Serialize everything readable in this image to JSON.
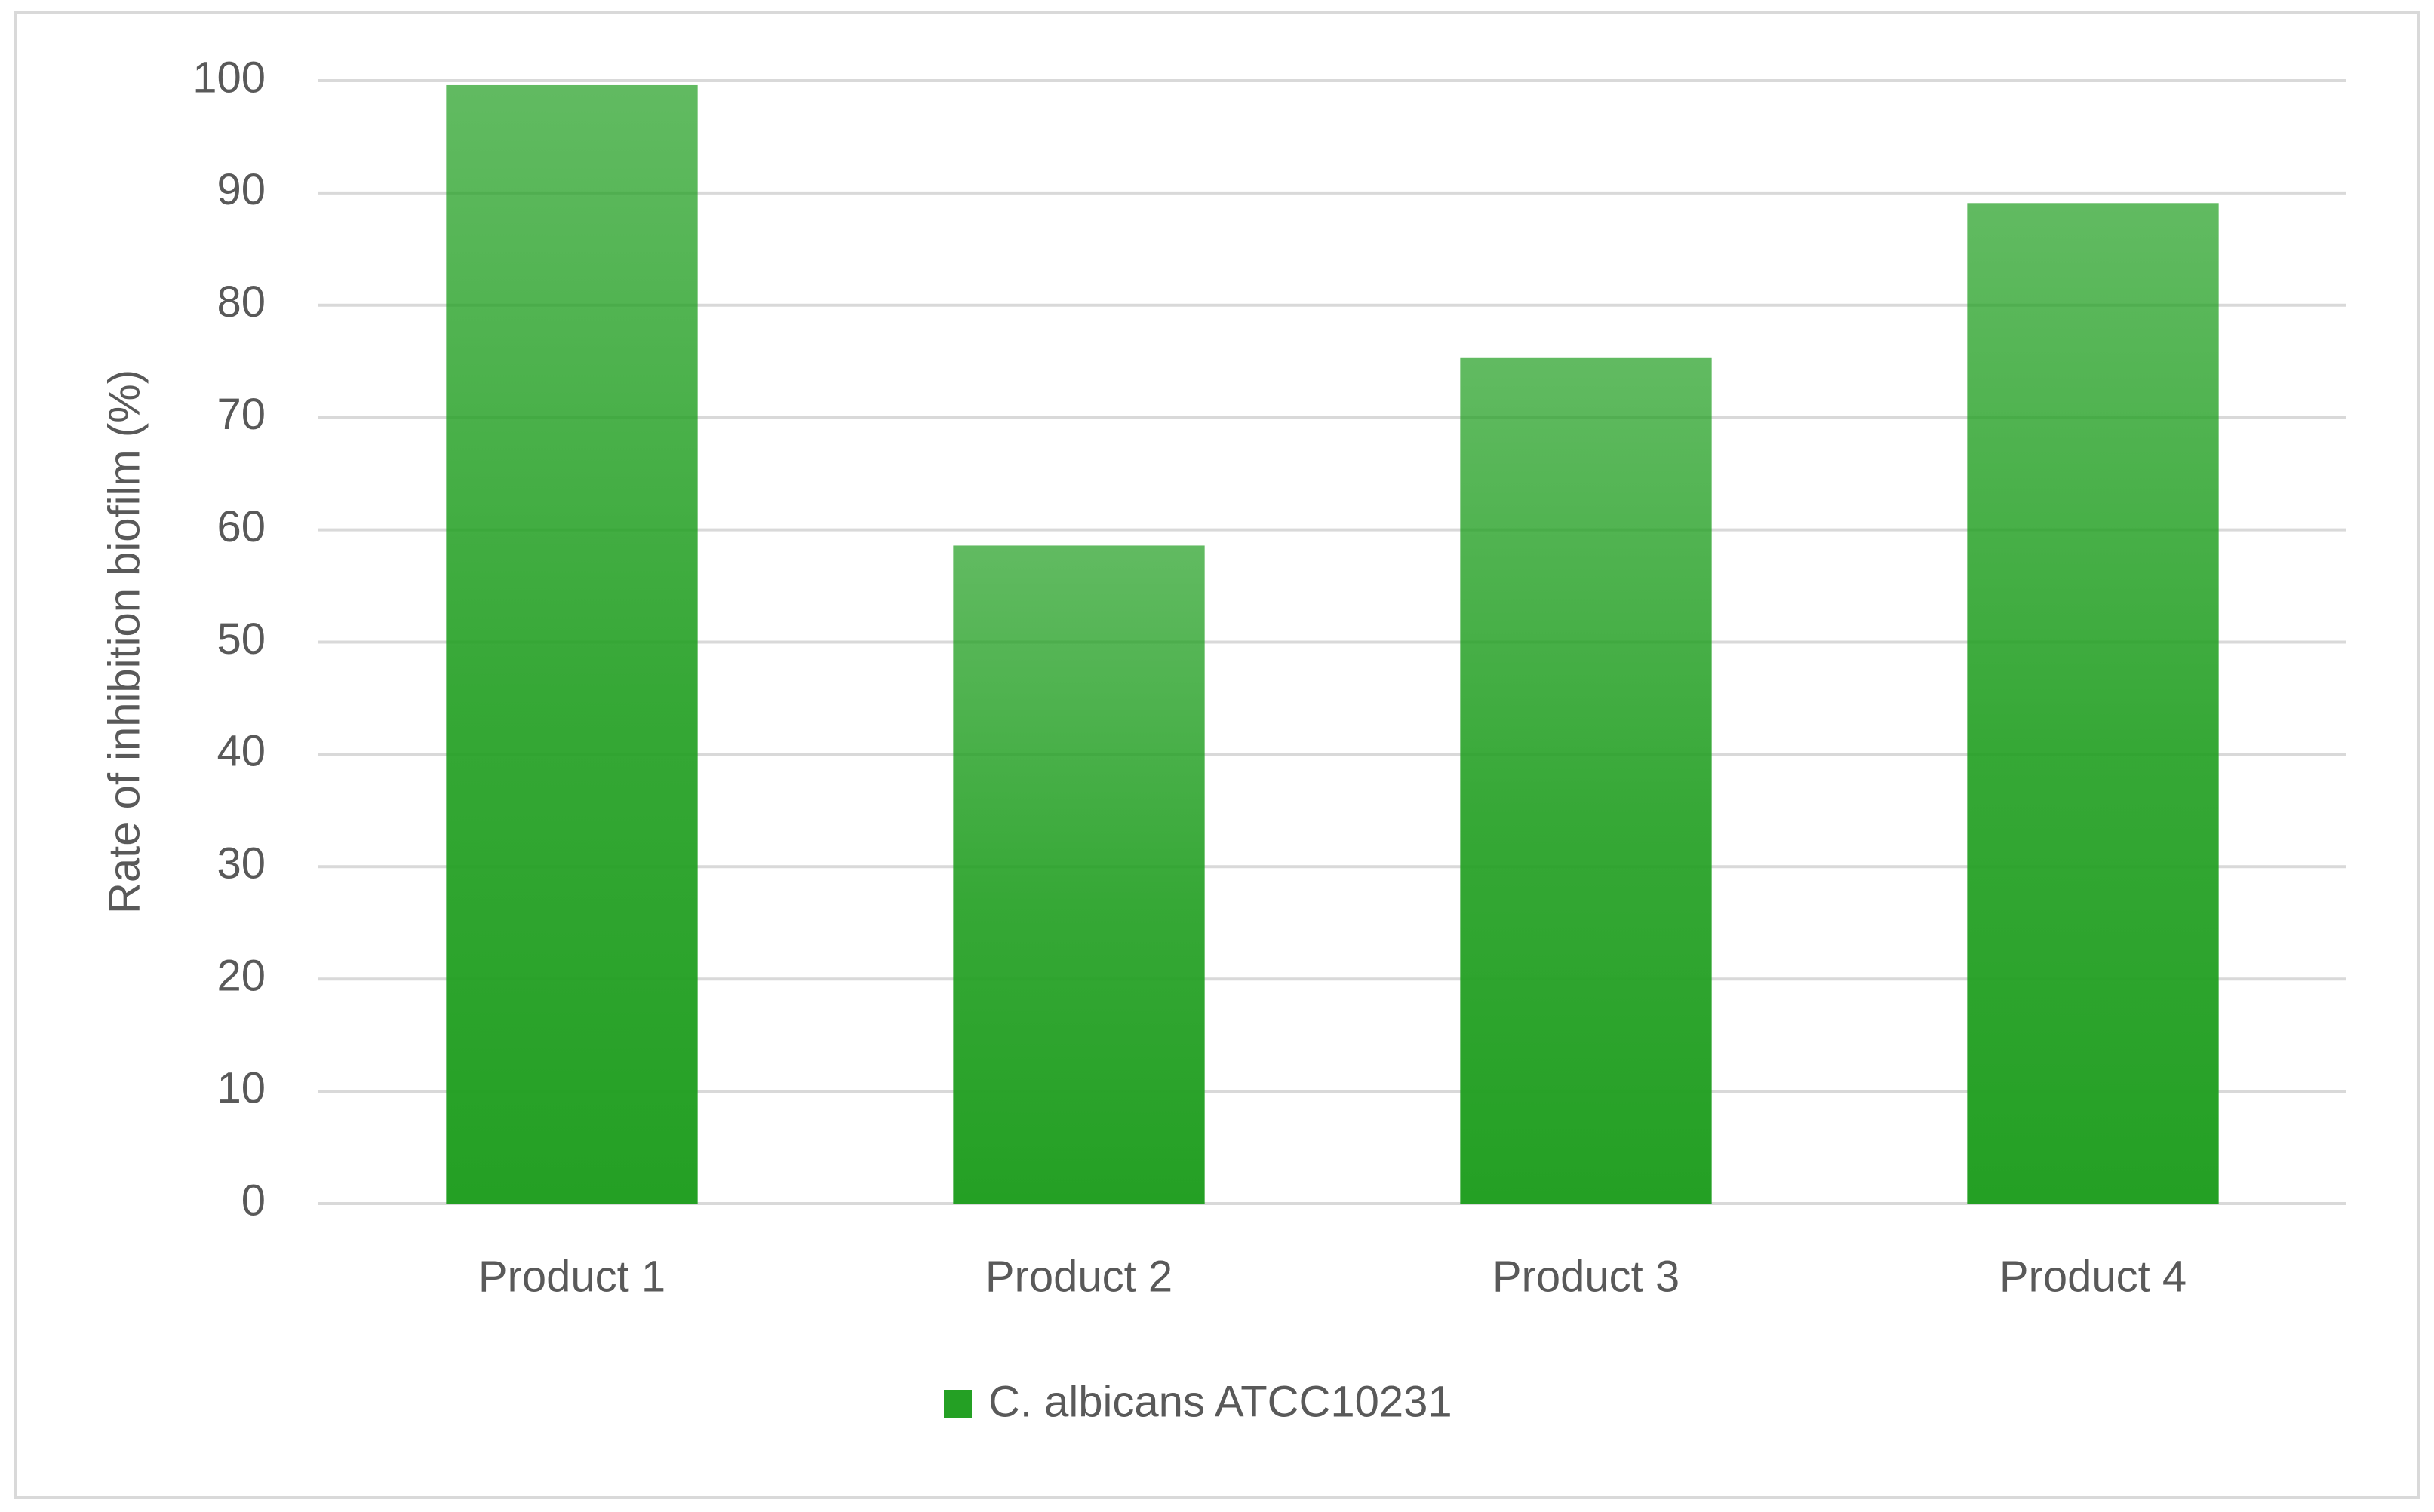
{
  "chart_data": {
    "type": "bar",
    "y_label": "Rate of inhibition biofilm (%)",
    "categories": [
      "Product 1",
      "Product 2",
      "Product 3",
      "Product 4"
    ],
    "series": [
      {
        "name": "C. albicans ATCC10231",
        "color": "#24a024",
        "values": [
          99.6,
          58.6,
          75.3,
          89.1
        ]
      }
    ],
    "ylim": [
      0,
      100
    ],
    "yticks": [
      0,
      10,
      20,
      30,
      40,
      50,
      60,
      70,
      80,
      90,
      100
    ],
    "grid": true,
    "legend": "bottom"
  }
}
